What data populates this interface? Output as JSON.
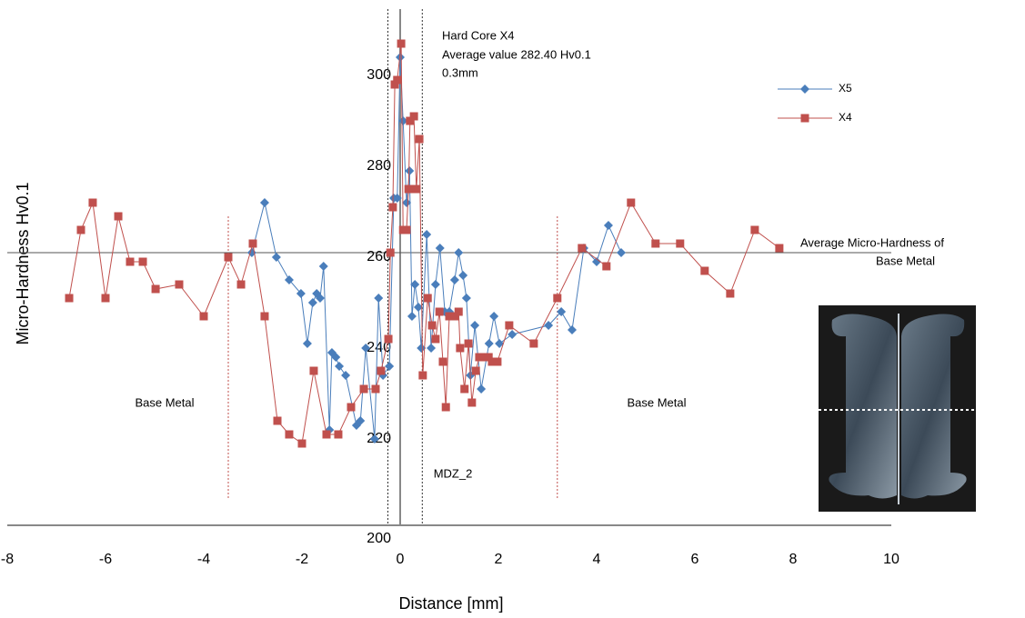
{
  "chart_data": {
    "type": "line",
    "x_label": "Distance [mm]",
    "y_label": "Micro-Hardness Hv0.1",
    "xlim": [
      -8,
      10
    ],
    "ylim": [
      200,
      313
    ],
    "xticks": [
      -8,
      -6,
      -4,
      -2,
      0,
      2,
      4,
      6,
      8,
      10
    ],
    "yticks": [
      200,
      220,
      240,
      260,
      280,
      300
    ],
    "grid": false,
    "legend": "top-right",
    "hline": 260,
    "core_lines": [
      -0.25,
      0.45
    ],
    "zone_lines": [
      -3.5,
      3.2
    ],
    "annotations": [
      "Hard Core X4",
      "Average value 282.40 Hv0.1",
      "0.3mm",
      "Average Micro-Hardness of",
      "Base Metal",
      "Base Metal",
      "Base Metal",
      "MDZ_2"
    ],
    "series": [
      {
        "name": "X5",
        "color": "#4a7ebb",
        "marker": "diamond",
        "x": [
          -3.02,
          -2.76,
          -2.52,
          -2.26,
          -2.02,
          -1.89,
          -1.78,
          -1.7,
          -1.63,
          -1.56,
          -1.44,
          -1.39,
          -1.31,
          -1.24,
          -1.11,
          -0.89,
          -0.81,
          -0.7,
          -0.52,
          -0.44,
          -0.35,
          -0.22,
          -0.13,
          -0.06,
          0,
          0.06,
          0.13,
          0.19,
          0.24,
          0.3,
          0.37,
          0.43,
          0.54,
          0.63,
          0.72,
          0.81,
          0.91,
          1.0,
          1.11,
          1.19,
          1.28,
          1.35,
          1.43,
          1.52,
          1.65,
          1.81,
          1.91,
          2.02,
          2.28,
          3.02,
          3.28,
          3.5,
          3.74,
          4.0,
          4.24,
          4.5
        ],
        "values": [
          260,
          271,
          259,
          254,
          251,
          240,
          249,
          251,
          250,
          257,
          221,
          238,
          237,
          235,
          233,
          222,
          223,
          239,
          219,
          250,
          233,
          235,
          272,
          272,
          303,
          289,
          271,
          278,
          246,
          253,
          248,
          239,
          264,
          239,
          253,
          261,
          247,
          247,
          254,
          260,
          255,
          250,
          233,
          244,
          230,
          240,
          246,
          240,
          242,
          244,
          247,
          243,
          261,
          258,
          266,
          260
        ]
      },
      {
        "name": "X4",
        "color": "#c0504d",
        "marker": "square",
        "x": [
          -6.74,
          -6.5,
          -6.26,
          -6.0,
          -5.74,
          -5.5,
          -5.24,
          -4.98,
          -4.5,
          -4.0,
          -3.5,
          -3.24,
          -3.0,
          -2.76,
          -2.5,
          -2.26,
          -2.0,
          -1.76,
          -1.5,
          -1.26,
          -1.0,
          -0.74,
          -0.5,
          -0.39,
          -0.24,
          -0.2,
          -0.15,
          -0.11,
          -0.06,
          0.02,
          0.06,
          0.13,
          0.17,
          0.2,
          0.28,
          0.33,
          0.39,
          0.46,
          0.56,
          0.65,
          0.72,
          0.8,
          0.87,
          0.93,
          1.0,
          1.11,
          1.19,
          1.22,
          1.31,
          1.39,
          1.46,
          1.54,
          1.61,
          1.7,
          1.8,
          1.87,
          1.98,
          2.22,
          2.72,
          3.2,
          3.7,
          4.2,
          4.7,
          5.2,
          5.7,
          6.2,
          6.72,
          7.22,
          7.72
        ],
        "values": [
          250,
          265,
          271,
          250,
          268,
          258,
          258,
          252,
          253,
          246,
          259,
          253,
          262,
          246,
          223,
          220,
          218,
          234,
          220,
          220,
          226,
          230,
          230,
          234,
          241,
          260,
          270,
          297,
          298,
          306,
          265,
          265,
          274,
          289,
          290,
          274,
          285,
          233,
          250,
          244,
          241,
          247,
          236,
          226,
          246,
          246,
          247,
          239,
          230,
          240,
          227,
          234,
          237,
          237,
          237,
          236,
          236,
          244,
          240,
          250,
          261,
          257,
          271,
          262,
          262,
          256,
          251,
          265,
          261
        ]
      }
    ]
  }
}
